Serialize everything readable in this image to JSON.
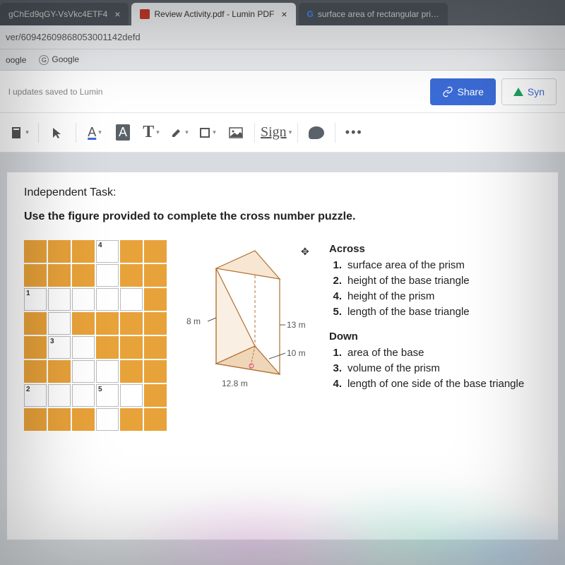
{
  "browser": {
    "tabs": [
      {
        "title": "gChEd9qGY-VsVkc4ETF4",
        "active": false
      },
      {
        "title": "Review Activity.pdf - Lumin PDF",
        "active": true
      },
      {
        "title": "surface area of rectangular pri…",
        "active": false
      }
    ],
    "url_fragment": "ver/6094260986805300​1142defd",
    "bookmarks": [
      "oogle",
      "Google"
    ]
  },
  "app": {
    "status": "l updates saved to Lumin",
    "share_label": "Share",
    "sync_label": "Syn"
  },
  "toolbar": {
    "signature_label": "Sign"
  },
  "document": {
    "task_title": "Independent Task:",
    "prompt": "Use the figure provided to complete the cross number puzzle.",
    "crossword": {
      "rows": 8,
      "cols": 6,
      "fill_color": "#e8a23a",
      "grid": [
        [
          1,
          1,
          1,
          0,
          1,
          1
        ],
        [
          1,
          1,
          1,
          0,
          1,
          1
        ],
        [
          0,
          0,
          0,
          0,
          0,
          1
        ],
        [
          1,
          0,
          1,
          1,
          1,
          1
        ],
        [
          1,
          0,
          0,
          1,
          1,
          1
        ],
        [
          1,
          1,
          0,
          0,
          1,
          1
        ],
        [
          0,
          0,
          0,
          0,
          0,
          1
        ],
        [
          1,
          1,
          1,
          0,
          1,
          1
        ]
      ],
      "numbers": {
        "0,3": "4",
        "2,0": "1",
        "4,1": "3",
        "6,0": "2",
        "6,3": "5"
      }
    },
    "figure": {
      "labels": {
        "left_edge": "8 m",
        "right_edge": "13 m",
        "base_right": "10 m",
        "base_front": "12.8 m"
      },
      "face_fill": "#f0d6b8",
      "line_color": "#b07030"
    },
    "clues": {
      "across_head": "Across",
      "down_head": "Down",
      "across": [
        {
          "n": "1.",
          "text": "surface area of the prism"
        },
        {
          "n": "2.",
          "text": "height of the base triangle"
        },
        {
          "n": "4.",
          "text": "height of the prism"
        },
        {
          "n": "5.",
          "text": "length of the base triangle"
        }
      ],
      "down": [
        {
          "n": "1.",
          "text": "area of the base"
        },
        {
          "n": "3.",
          "text": "volume of the prism"
        },
        {
          "n": "4.",
          "text": "length of one side of the base triangle"
        }
      ]
    }
  }
}
